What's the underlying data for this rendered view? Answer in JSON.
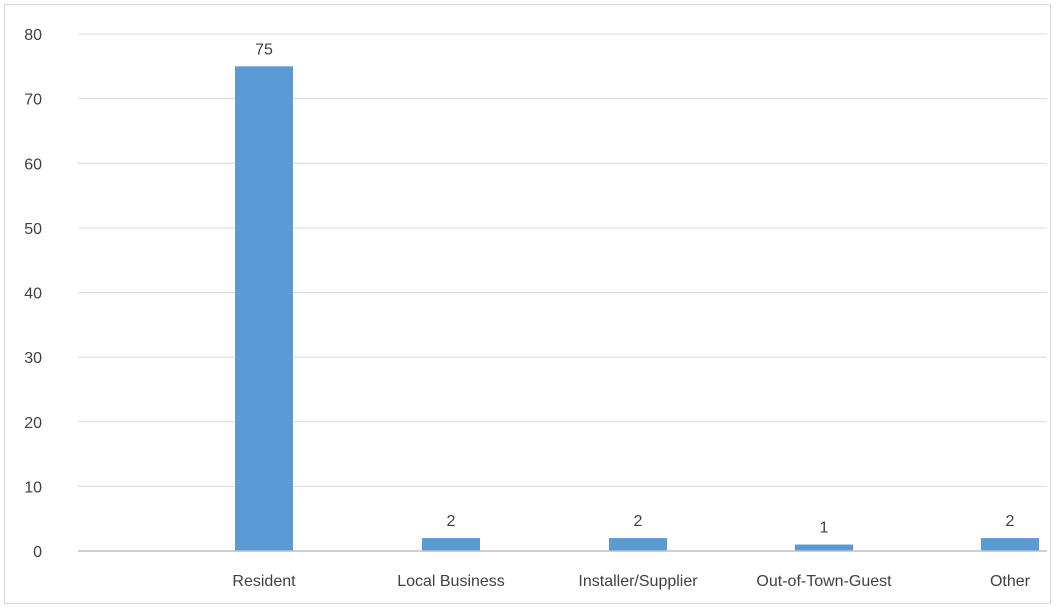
{
  "chart_data": {
    "type": "bar",
    "categories": [
      "Resident",
      "Local Business",
      "Installer/Supplier",
      "Out-of-Town-Guest",
      "Other"
    ],
    "values": [
      75,
      2,
      2,
      1,
      2
    ],
    "data_labels": [
      "75",
      "2",
      "2",
      "1",
      "2"
    ],
    "title": "",
    "xlabel": "",
    "ylabel": "",
    "ylim": [
      0,
      80
    ],
    "yticks": [
      0,
      10,
      20,
      30,
      40,
      50,
      60,
      70,
      80
    ],
    "ytick_labels": [
      "0",
      "10",
      "20",
      "30",
      "40",
      "50",
      "60",
      "70",
      "80"
    ],
    "grid": true,
    "legend": "none",
    "colors": {
      "bar": "#5b9bd5",
      "grid": "#d9d9d9",
      "axis": "#bfbfbf",
      "text": "#404040"
    }
  }
}
